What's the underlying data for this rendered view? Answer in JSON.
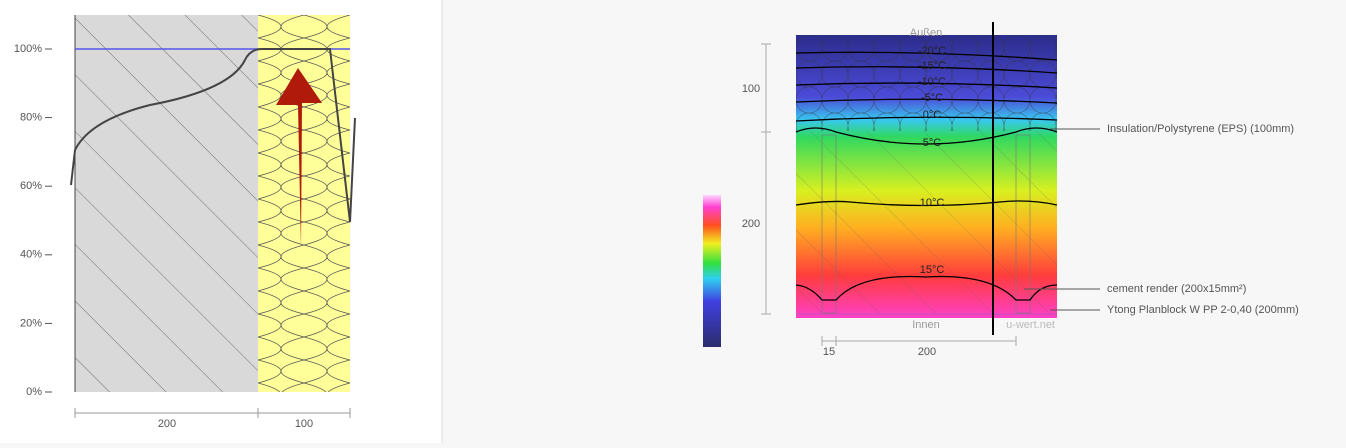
{
  "moisture_chart": {
    "yticks": [
      "0%",
      "20%",
      "40%",
      "60%",
      "80%",
      "100%"
    ],
    "dims": [
      "200",
      "100"
    ]
  },
  "temperature_diagram": {
    "top_label": "Außen",
    "bottom_label": "Innen",
    "watermark": "u-wert.net",
    "isotherms": [
      "-20°C",
      "-15°C",
      "-10°C",
      "-5°C",
      "0°C",
      "5°C",
      "10°C",
      "15°C"
    ],
    "dims_vertical": [
      "100",
      "200"
    ],
    "dims_horizontal": [
      "15",
      "200"
    ],
    "layers": [
      "Insulation/Polystyrene (EPS) (100mm)",
      "cement render (200x15mm²)",
      "Ytong Planblock W PP 2-0,40 (200mm)"
    ]
  }
}
